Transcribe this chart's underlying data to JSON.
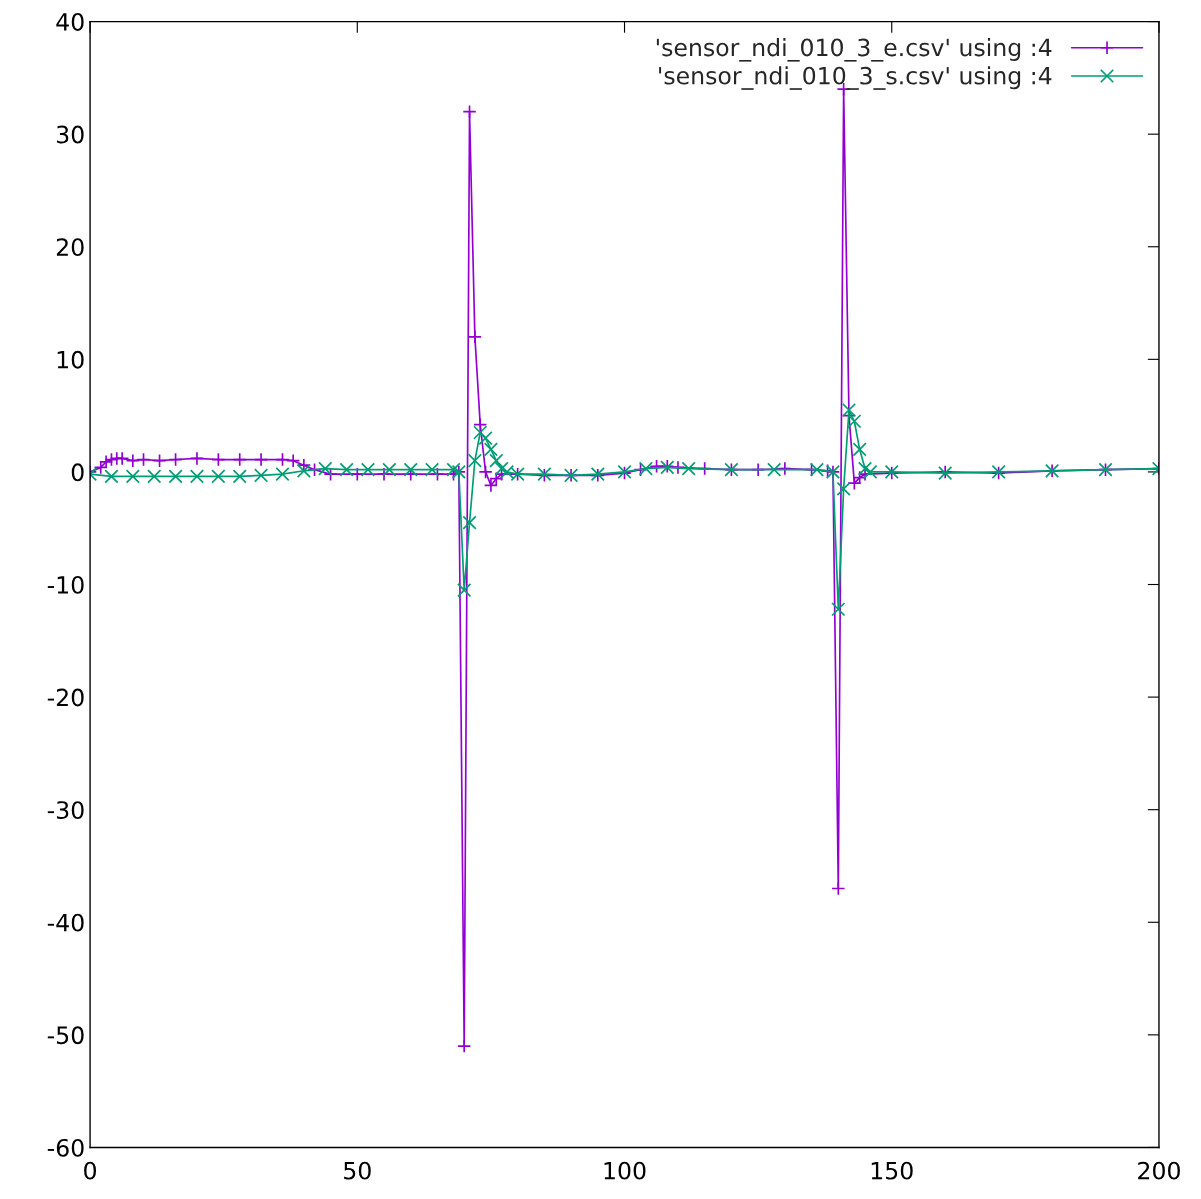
{
  "chart_data": {
    "type": "line",
    "series": [
      {
        "name": "'sensor_ndi_010_3_e.csv' using :4",
        "color": "#9400d3",
        "marker": "plus",
        "x": [
          0,
          2,
          3,
          4,
          5,
          6,
          8,
          10,
          13,
          16,
          20,
          24,
          28,
          32,
          36,
          38,
          40,
          42,
          45,
          50,
          55,
          60,
          65,
          68,
          69,
          70,
          71,
          72,
          73,
          74,
          75,
          76,
          77,
          80,
          85,
          90,
          95,
          100,
          103,
          106,
          108,
          110,
          115,
          120,
          125,
          130,
          135,
          138,
          139,
          140,
          141,
          142,
          143,
          144,
          145,
          150,
          160,
          170,
          180,
          190,
          200
        ],
        "values": [
          0,
          0.4,
          0.9,
          1.1,
          1.2,
          1.2,
          1.0,
          1.1,
          1.0,
          1.1,
          1.2,
          1.1,
          1.1,
          1.1,
          1.1,
          1.0,
          0.6,
          0.2,
          -0.2,
          -0.2,
          -0.2,
          -0.2,
          -0.2,
          -0.2,
          0,
          -51,
          32,
          12,
          4.2,
          0,
          -1.2,
          -0.6,
          -0.2,
          -0.2,
          -0.3,
          -0.3,
          -0.3,
          -0.1,
          0.2,
          0.5,
          0.5,
          0.4,
          0.3,
          0.2,
          0.2,
          0.3,
          0.2,
          0.1,
          0,
          -37,
          34,
          5,
          -1,
          -0.5,
          -0.2,
          -0.1,
          0,
          -0.1,
          0.1,
          0.2,
          0.3
        ]
      },
      {
        "name": "'sensor_ndi_010_3_s.csv' using :4",
        "color": "#009e73",
        "marker": "cross",
        "x": [
          0,
          4,
          8,
          12,
          16,
          20,
          24,
          28,
          32,
          36,
          40,
          44,
          48,
          52,
          56,
          60,
          64,
          68,
          69,
          70,
          71,
          72,
          73,
          74,
          75,
          76,
          77,
          78,
          80,
          85,
          90,
          95,
          100,
          104,
          108,
          112,
          120,
          128,
          136,
          139,
          140,
          141,
          142,
          143,
          144,
          145,
          146,
          150,
          160,
          170,
          180,
          190,
          200
        ],
        "values": [
          -0.2,
          -0.4,
          -0.4,
          -0.4,
          -0.4,
          -0.4,
          -0.4,
          -0.4,
          -0.3,
          -0.2,
          0.1,
          0.3,
          0.2,
          0.2,
          0.2,
          0.2,
          0.2,
          0.2,
          0,
          -10.5,
          -4.5,
          1,
          3.5,
          3,
          2,
          1,
          0.3,
          0,
          -0.2,
          -0.2,
          -0.3,
          -0.2,
          0,
          0.3,
          0.4,
          0.3,
          0.2,
          0.2,
          0.2,
          0,
          -12.2,
          -1.5,
          5.5,
          4.5,
          2,
          0.3,
          0,
          0,
          -0.1,
          0,
          0.1,
          0.2,
          0.3
        ]
      }
    ],
    "xlim": [
      0,
      200
    ],
    "xticks": [
      0,
      50,
      100,
      150,
      200
    ],
    "ylim": [
      -60,
      40
    ],
    "yticks": [
      -60,
      -50,
      -40,
      -30,
      -20,
      -10,
      0,
      10,
      20,
      30,
      40
    ],
    "grid": false,
    "legend": "top right",
    "line_style": "solid"
  }
}
